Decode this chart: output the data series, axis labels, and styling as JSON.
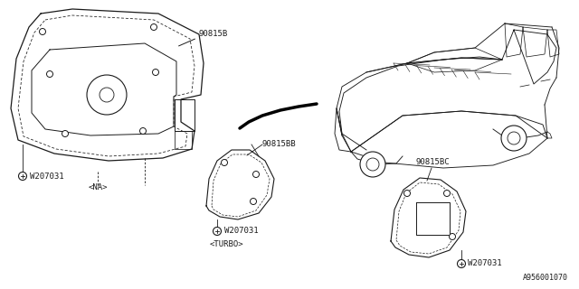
{
  "bg_color": "#ffffff",
  "line_color": "#1a1a1a",
  "labels": {
    "part1": "90815B",
    "part2": "90815BB",
    "part3": "90815BC",
    "bolt1": "W207031",
    "bolt2": "W207031",
    "bolt3": "W207031",
    "tag_na": "<NA>",
    "tag_turbo": "<TURBO>",
    "diagram_id": "A956001070"
  },
  "font_size_label": 6.5,
  "font_size_tag": 6.5,
  "font_size_id": 6.0
}
